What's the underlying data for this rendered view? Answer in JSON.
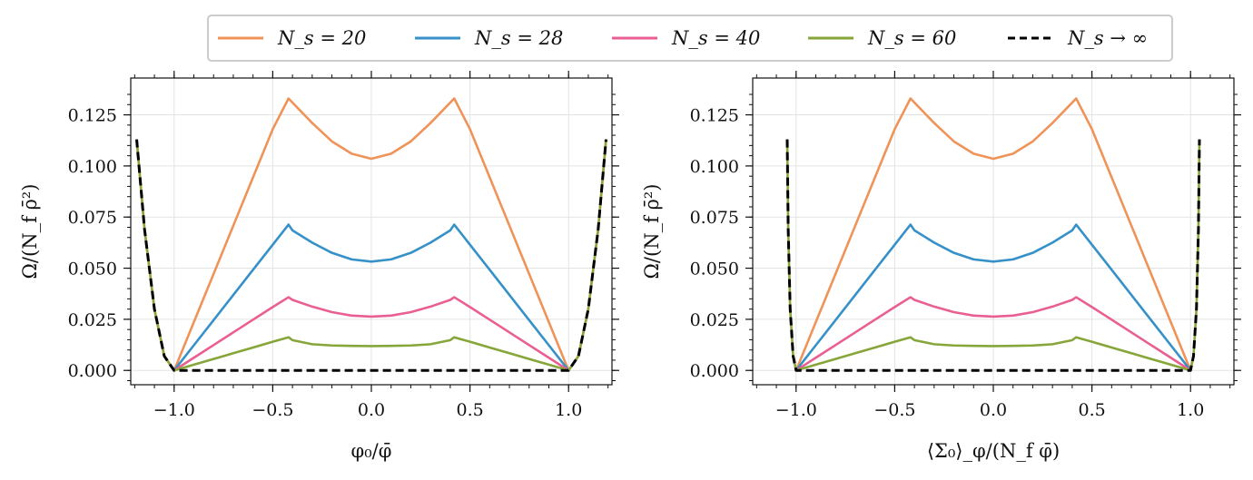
{
  "legend": {
    "location": "top-center",
    "entries": [
      {
        "label": "N_s = 20",
        "color": "#ef9359",
        "dashed": false
      },
      {
        "label": "N_s = 28",
        "color": "#3591c8",
        "dashed": false
      },
      {
        "label": "N_s = 40",
        "color": "#ea5f91",
        "dashed": false
      },
      {
        "label": "N_s = 60",
        "color": "#87a63a",
        "dashed": false
      },
      {
        "label": "N_s → ∞",
        "color": "#000000",
        "dashed": true
      }
    ]
  },
  "chart_data": [
    {
      "type": "line",
      "xlabel": "φ₀/φ̄",
      "ylabel": "Ω/(N_f ρ̄²)",
      "xlim": [
        -1.22,
        1.22
      ],
      "ylim": [
        -0.007,
        0.143
      ],
      "xticks": [
        {
          "value": -1.0,
          "label": "−1.0"
        },
        {
          "value": -0.5,
          "label": "−0.5"
        },
        {
          "value": 0.0,
          "label": "0.0"
        },
        {
          "value": 0.5,
          "label": "0.5"
        },
        {
          "value": 1.0,
          "label": "1.0"
        }
      ],
      "yticks": [
        {
          "value": 0.0,
          "label": "0.000"
        },
        {
          "value": 0.025,
          "label": "0.025"
        },
        {
          "value": 0.05,
          "label": "0.050"
        },
        {
          "value": 0.075,
          "label": "0.075"
        },
        {
          "value": 0.1,
          "label": "0.100"
        },
        {
          "value": 0.125,
          "label": "0.125"
        }
      ],
      "grid": true,
      "series": [
        {
          "name": "N_s = 20",
          "color": "#ef9359",
          "dashed": false,
          "x": [
            -1.19,
            -1.15,
            -1.1,
            -1.05,
            -1.0,
            -0.9,
            -0.8,
            -0.7,
            -0.6,
            -0.5,
            -0.42,
            -0.4,
            -0.3,
            -0.2,
            -0.1,
            0.0,
            0.1,
            0.2,
            0.3,
            0.4,
            0.42,
            0.5,
            0.6,
            0.7,
            0.8,
            0.9,
            1.0,
            1.05,
            1.1,
            1.15,
            1.19
          ],
          "y": [
            0.113,
            0.069,
            0.03,
            0.007,
            0.0,
            0.0236,
            0.0472,
            0.0708,
            0.0944,
            0.118,
            0.133,
            0.131,
            0.121,
            0.112,
            0.106,
            0.1035,
            0.106,
            0.112,
            0.121,
            0.131,
            0.133,
            0.118,
            0.0944,
            0.0708,
            0.0472,
            0.0236,
            0.0,
            0.007,
            0.03,
            0.069,
            0.113
          ]
        },
        {
          "name": "N_s = 28",
          "color": "#3591c8",
          "dashed": false,
          "x": [
            -1.0,
            -0.9,
            -0.8,
            -0.7,
            -0.6,
            -0.5,
            -0.42,
            -0.4,
            -0.3,
            -0.2,
            -0.1,
            0.0,
            0.1,
            0.2,
            0.3,
            0.4,
            0.42,
            0.5,
            0.6,
            0.7,
            0.8,
            0.9,
            1.0
          ],
          "y": [
            0.0,
            0.0123,
            0.0246,
            0.0369,
            0.0492,
            0.0615,
            0.0713,
            0.0685,
            0.0625,
            0.0575,
            0.0543,
            0.0532,
            0.0543,
            0.0575,
            0.0625,
            0.0685,
            0.0713,
            0.0615,
            0.0492,
            0.0369,
            0.0246,
            0.0123,
            0.0
          ]
        },
        {
          "name": "N_s = 40",
          "color": "#ea5f91",
          "dashed": false,
          "x": [
            -1.0,
            -0.9,
            -0.8,
            -0.7,
            -0.6,
            -0.5,
            -0.42,
            -0.4,
            -0.3,
            -0.2,
            -0.1,
            0.0,
            0.1,
            0.2,
            0.3,
            0.4,
            0.42,
            0.5,
            0.6,
            0.7,
            0.8,
            0.9,
            1.0
          ],
          "y": [
            0.0,
            0.0062,
            0.0124,
            0.0186,
            0.0248,
            0.031,
            0.0358,
            0.0345,
            0.0312,
            0.0285,
            0.0268,
            0.0263,
            0.0268,
            0.0285,
            0.0312,
            0.0345,
            0.0358,
            0.031,
            0.0248,
            0.0186,
            0.0124,
            0.0062,
            0.0
          ]
        },
        {
          "name": "N_s = 60",
          "color": "#87a63a",
          "dashed": false,
          "x": [
            -1.19,
            -1.15,
            -1.1,
            -1.05,
            -1.0,
            -0.9,
            -0.8,
            -0.7,
            -0.6,
            -0.5,
            -0.42,
            -0.4,
            -0.3,
            -0.2,
            -0.1,
            0.0,
            0.1,
            0.2,
            0.3,
            0.4,
            0.42,
            0.5,
            0.6,
            0.7,
            0.8,
            0.9,
            1.0,
            1.05,
            1.1,
            1.15,
            1.19
          ],
          "y": [
            0.113,
            0.069,
            0.03,
            0.007,
            0.0,
            0.0028,
            0.0056,
            0.0084,
            0.0112,
            0.014,
            0.0162,
            0.0148,
            0.0128,
            0.0122,
            0.012,
            0.0119,
            0.012,
            0.0122,
            0.0128,
            0.0148,
            0.0162,
            0.014,
            0.0112,
            0.0084,
            0.0056,
            0.0028,
            0.0,
            0.007,
            0.03,
            0.069,
            0.113
          ]
        },
        {
          "name": "N_s → ∞",
          "color": "#000000",
          "dashed": true,
          "x": [
            -1.19,
            -1.15,
            -1.1,
            -1.05,
            -1.0,
            -0.5,
            0.0,
            0.5,
            1.0,
            1.05,
            1.1,
            1.15,
            1.19
          ],
          "y": [
            0.113,
            0.069,
            0.03,
            0.007,
            0.0,
            0.0,
            0.0,
            0.0,
            0.0,
            0.007,
            0.03,
            0.069,
            0.113
          ]
        }
      ]
    },
    {
      "type": "line",
      "xlabel": "⟨Σ₀⟩_φ/(N_f φ̄)",
      "ylabel": "Ω/(N_f ρ̄²)",
      "xlim": [
        -1.22,
        1.22
      ],
      "ylim": [
        -0.007,
        0.143
      ],
      "xticks": [
        {
          "value": -1.0,
          "label": "−1.0"
        },
        {
          "value": -0.5,
          "label": "−0.5"
        },
        {
          "value": 0.0,
          "label": "0.0"
        },
        {
          "value": 0.5,
          "label": "0.5"
        },
        {
          "value": 1.0,
          "label": "1.0"
        }
      ],
      "yticks": [
        {
          "value": 0.0,
          "label": "0.000"
        },
        {
          "value": 0.025,
          "label": "0.025"
        },
        {
          "value": 0.05,
          "label": "0.050"
        },
        {
          "value": 0.075,
          "label": "0.075"
        },
        {
          "value": 0.1,
          "label": "0.100"
        },
        {
          "value": 0.125,
          "label": "0.125"
        }
      ],
      "grid": true,
      "series": [
        {
          "name": "N_s = 20",
          "color": "#ef9359",
          "dashed": false,
          "x": [
            -1.0,
            -0.9,
            -0.8,
            -0.7,
            -0.6,
            -0.5,
            -0.42,
            -0.4,
            -0.3,
            -0.2,
            -0.1,
            0.0,
            0.1,
            0.2,
            0.3,
            0.4,
            0.42,
            0.5,
            0.6,
            0.7,
            0.8,
            0.9,
            1.0
          ],
          "y": [
            0.0,
            0.0236,
            0.0472,
            0.0708,
            0.0944,
            0.118,
            0.133,
            0.131,
            0.121,
            0.112,
            0.106,
            0.1035,
            0.106,
            0.112,
            0.121,
            0.131,
            0.133,
            0.118,
            0.0944,
            0.0708,
            0.0472,
            0.0236,
            0.0
          ]
        },
        {
          "name": "N_s = 28",
          "color": "#3591c8",
          "dashed": false,
          "x": [
            -1.0,
            -0.9,
            -0.8,
            -0.7,
            -0.6,
            -0.5,
            -0.42,
            -0.4,
            -0.3,
            -0.2,
            -0.1,
            0.0,
            0.1,
            0.2,
            0.3,
            0.4,
            0.42,
            0.5,
            0.6,
            0.7,
            0.8,
            0.9,
            1.0
          ],
          "y": [
            0.0,
            0.0123,
            0.0246,
            0.0369,
            0.0492,
            0.0615,
            0.0713,
            0.0685,
            0.0625,
            0.0575,
            0.0543,
            0.0532,
            0.0543,
            0.0575,
            0.0625,
            0.0685,
            0.0713,
            0.0615,
            0.0492,
            0.0369,
            0.0246,
            0.0123,
            0.0
          ]
        },
        {
          "name": "N_s = 40",
          "color": "#ea5f91",
          "dashed": false,
          "x": [
            -1.0,
            -0.9,
            -0.8,
            -0.7,
            -0.6,
            -0.5,
            -0.42,
            -0.4,
            -0.3,
            -0.2,
            -0.1,
            0.0,
            0.1,
            0.2,
            0.3,
            0.4,
            0.42,
            0.5,
            0.6,
            0.7,
            0.8,
            0.9,
            1.0
          ],
          "y": [
            0.0,
            0.0062,
            0.0124,
            0.0186,
            0.0248,
            0.031,
            0.0358,
            0.0345,
            0.0312,
            0.0285,
            0.0268,
            0.0263,
            0.0268,
            0.0285,
            0.0312,
            0.0345,
            0.0358,
            0.031,
            0.0248,
            0.0186,
            0.0124,
            0.0062,
            0.0
          ]
        },
        {
          "name": "N_s = 60",
          "color": "#87a63a",
          "dashed": false,
          "x": [
            -1.045,
            -1.04,
            -1.03,
            -1.015,
            -1.0,
            -0.9,
            -0.8,
            -0.7,
            -0.6,
            -0.5,
            -0.42,
            -0.4,
            -0.3,
            -0.2,
            -0.1,
            0.0,
            0.1,
            0.2,
            0.3,
            0.4,
            0.42,
            0.5,
            0.6,
            0.7,
            0.8,
            0.9,
            1.0,
            1.015,
            1.03,
            1.04,
            1.045
          ],
          "y": [
            0.113,
            0.069,
            0.03,
            0.007,
            0.0,
            0.0028,
            0.0056,
            0.0084,
            0.0112,
            0.014,
            0.0162,
            0.0148,
            0.0128,
            0.0122,
            0.012,
            0.0119,
            0.012,
            0.0122,
            0.0128,
            0.0148,
            0.0162,
            0.014,
            0.0112,
            0.0084,
            0.0056,
            0.0028,
            0.0,
            0.007,
            0.03,
            0.069,
            0.113
          ]
        },
        {
          "name": "N_s → ∞",
          "color": "#000000",
          "dashed": true,
          "x": [
            -1.045,
            -1.04,
            -1.03,
            -1.015,
            -1.0,
            -0.5,
            0.0,
            0.5,
            1.0,
            1.015,
            1.03,
            1.04,
            1.045
          ],
          "y": [
            0.113,
            0.069,
            0.03,
            0.007,
            0.0,
            0.0,
            0.0,
            0.0,
            0.0,
            0.007,
            0.03,
            0.069,
            0.113
          ]
        }
      ]
    }
  ]
}
